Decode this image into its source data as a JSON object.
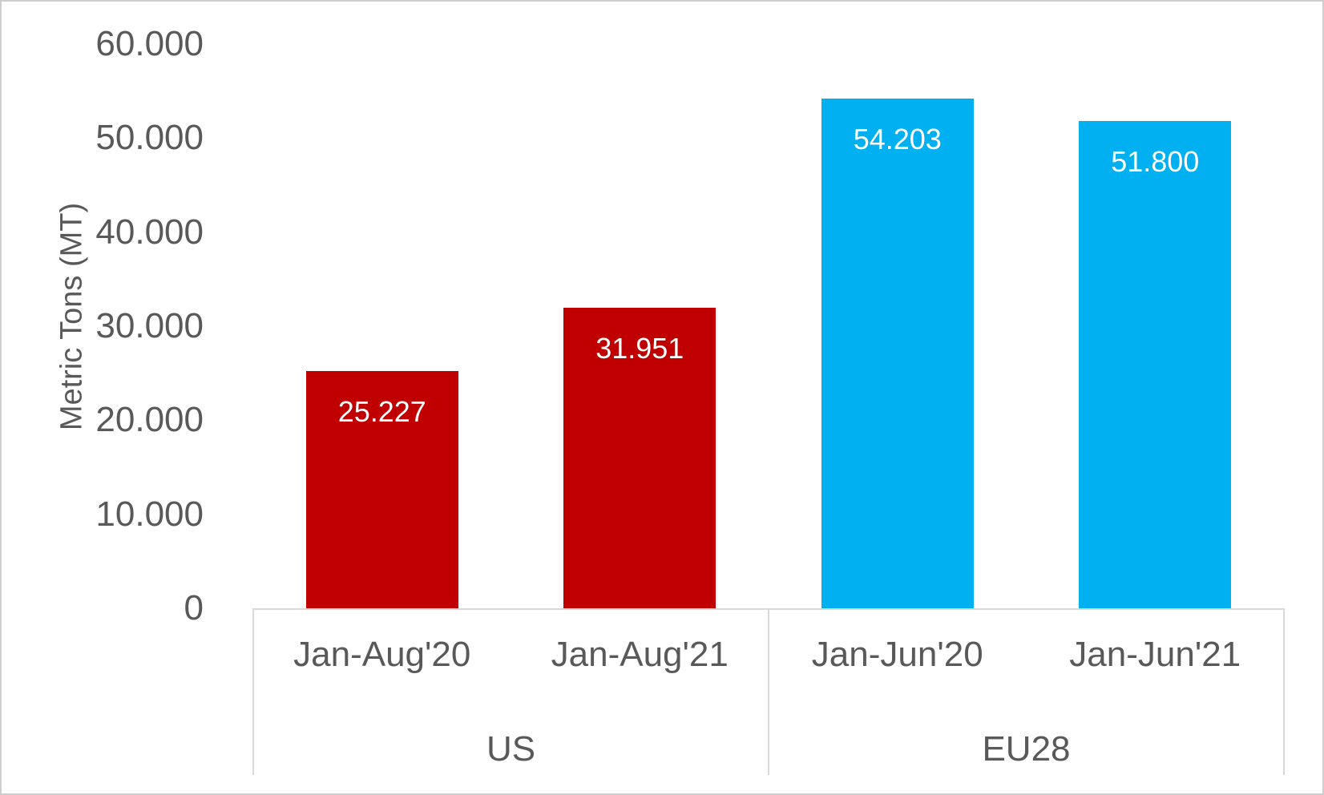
{
  "chart_data": {
    "type": "bar",
    "title": "",
    "ylabel": "Metric Tons (MT)",
    "xlabel": "",
    "ylim": [
      0,
      60000
    ],
    "ytick_interval": 10000,
    "ytick_labels": [
      "0",
      "10.000",
      "20.000",
      "30.000",
      "40.000",
      "50.000",
      "60.000"
    ],
    "grid": false,
    "legend": "none",
    "number_format": "thousands-dot",
    "groups": [
      {
        "label": "US",
        "color": "#C00000",
        "categories": [
          "Jan-Aug'20",
          "Jan-Aug'21"
        ],
        "values": [
          25227,
          31951
        ],
        "value_labels": [
          "25.227",
          "31.951"
        ]
      },
      {
        "label": "EU28",
        "color": "#00B0F0",
        "categories": [
          "Jan-Jun'20",
          "Jan-Jun'21"
        ],
        "values": [
          54203,
          51800
        ],
        "value_labels": [
          "54.203",
          "51.800"
        ]
      }
    ]
  },
  "colors": {
    "us_bars": "#C00000",
    "eu28_bars": "#00B0F0",
    "axis_text": "#595959",
    "data_label_text": "#FFFFFF",
    "axis_lines": "#D9D9D9",
    "frame_border": "#CFCDCD",
    "background": "#FFFFFF"
  }
}
